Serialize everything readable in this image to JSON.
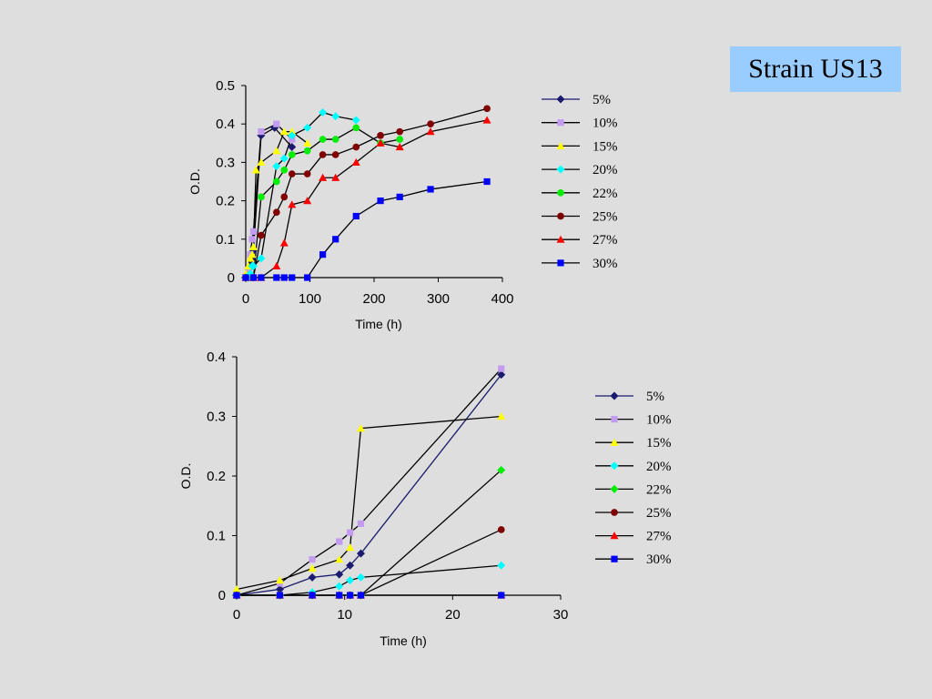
{
  "slide": {
    "title": "Strain US13"
  },
  "colors": {
    "5%": "#1a1a6e",
    "10%": "#c39bef",
    "15%": "#ffff00",
    "20%": "#00ffff",
    "22%": "#00ee00",
    "25%": "#800000",
    "27%": "#ff0000",
    "30%": "#0000ff"
  },
  "chart_data": [
    {
      "type": "line",
      "xlabel": "Time (h)",
      "ylabel": "O.D.",
      "xlim": [
        0,
        400
      ],
      "ylim": [
        0,
        0.5
      ],
      "xticks": [
        0,
        100,
        200,
        300,
        400
      ],
      "yticks": [
        0,
        0.1,
        0.2,
        0.3,
        0.4,
        0.5
      ],
      "xtick_labels": [
        "0",
        "100",
        "200",
        "300",
        "400"
      ],
      "ytick_labels": [
        "0",
        "0.1",
        "0.2",
        "0.3",
        "0.4",
        "0.5"
      ],
      "legend": "right",
      "series": [
        {
          "name": "5%",
          "marker": "diamond",
          "points": [
            [
              0,
              0
            ],
            [
              4,
              0.01
            ],
            [
              7,
              0.03
            ],
            [
              10,
              0.05
            ],
            [
              12,
              0.07
            ],
            [
              24,
              0.37
            ],
            [
              45,
              0.39
            ],
            [
              72,
              0.34
            ]
          ]
        },
        {
          "name": "10%",
          "marker": "square",
          "points": [
            [
              0,
              0
            ],
            [
              4,
              0.02
            ],
            [
              7,
              0.06
            ],
            [
              10,
              0.1
            ],
            [
              12,
              0.12
            ],
            [
              24,
              0.38
            ],
            [
              48,
              0.4
            ],
            [
              72,
              0.36
            ]
          ]
        },
        {
          "name": "15%",
          "marker": "triangle",
          "points": [
            [
              0,
              0.01
            ],
            [
              4,
              0.03
            ],
            [
              7,
              0.05
            ],
            [
              10,
              0.06
            ],
            [
              12,
              0.08
            ],
            [
              16,
              0.28
            ],
            [
              24,
              0.3
            ],
            [
              48,
              0.33
            ],
            [
              60,
              0.38
            ],
            [
              72,
              0.38
            ],
            [
              96,
              0.35
            ]
          ]
        },
        {
          "name": "20%",
          "marker": "diamond",
          "points": [
            [
              0,
              0
            ],
            [
              4,
              0
            ],
            [
              7,
              0.01
            ],
            [
              10,
              0.03
            ],
            [
              12,
              0.03
            ],
            [
              24,
              0.05
            ],
            [
              48,
              0.29
            ],
            [
              60,
              0.31
            ],
            [
              72,
              0.37
            ],
            [
              96,
              0.39
            ],
            [
              120,
              0.43
            ],
            [
              140,
              0.42
            ],
            [
              172,
              0.41
            ]
          ]
        },
        {
          "name": "22%",
          "marker": "circle",
          "points": [
            [
              0,
              0
            ],
            [
              12,
              0
            ],
            [
              24,
              0.21
            ],
            [
              48,
              0.25
            ],
            [
              60,
              0.28
            ],
            [
              72,
              0.32
            ],
            [
              96,
              0.33
            ],
            [
              120,
              0.36
            ],
            [
              140,
              0.36
            ],
            [
              172,
              0.39
            ],
            [
              210,
              0.35
            ],
            [
              240,
              0.36
            ]
          ]
        },
        {
          "name": "25%",
          "marker": "circle",
          "points": [
            [
              0,
              0
            ],
            [
              12,
              0
            ],
            [
              24,
              0.11
            ],
            [
              48,
              0.17
            ],
            [
              60,
              0.21
            ],
            [
              72,
              0.27
            ],
            [
              96,
              0.27
            ],
            [
              120,
              0.32
            ],
            [
              140,
              0.32
            ],
            [
              172,
              0.34
            ],
            [
              210,
              0.37
            ],
            [
              240,
              0.38
            ],
            [
              288,
              0.4
            ],
            [
              376,
              0.44
            ]
          ]
        },
        {
          "name": "27%",
          "marker": "triangle",
          "points": [
            [
              0,
              0
            ],
            [
              12,
              0
            ],
            [
              24,
              0
            ],
            [
              48,
              0.03
            ],
            [
              60,
              0.09
            ],
            [
              72,
              0.19
            ],
            [
              96,
              0.2
            ],
            [
              120,
              0.26
            ],
            [
              140,
              0.26
            ],
            [
              172,
              0.3
            ],
            [
              210,
              0.35
            ],
            [
              240,
              0.34
            ],
            [
              288,
              0.38
            ],
            [
              376,
              0.41
            ]
          ]
        },
        {
          "name": "30%",
          "marker": "square",
          "points": [
            [
              0,
              0
            ],
            [
              12,
              0
            ],
            [
              24,
              0
            ],
            [
              48,
              0
            ],
            [
              60,
              0
            ],
            [
              72,
              0
            ],
            [
              96,
              0
            ],
            [
              120,
              0.06
            ],
            [
              140,
              0.1
            ],
            [
              172,
              0.16
            ],
            [
              210,
              0.2
            ],
            [
              240,
              0.21
            ],
            [
              288,
              0.23
            ],
            [
              376,
              0.25
            ]
          ]
        }
      ]
    },
    {
      "type": "line",
      "xlabel": "Time (h)",
      "ylabel": "O.D.",
      "xlim": [
        0,
        30
      ],
      "ylim": [
        0,
        0.4
      ],
      "xticks": [
        0,
        10,
        20,
        30
      ],
      "yticks": [
        0,
        0.1,
        0.2,
        0.3,
        0.4
      ],
      "xtick_labels": [
        "0",
        "10",
        "20",
        "30"
      ],
      "ytick_labels": [
        "0",
        "0.1",
        "0.2",
        "0.3",
        "0.4"
      ],
      "legend": "right",
      "series": [
        {
          "name": "5%",
          "marker": "diamond",
          "points": [
            [
              0,
              0
            ],
            [
              4,
              0.01
            ],
            [
              7,
              0.03
            ],
            [
              9.5,
              0.035
            ],
            [
              10.5,
              0.05
            ],
            [
              11.5,
              0.07
            ],
            [
              24.5,
              0.37
            ]
          ]
        },
        {
          "name": "10%",
          "marker": "square",
          "points": [
            [
              0,
              0
            ],
            [
              4,
              0.02
            ],
            [
              7,
              0.06
            ],
            [
              9.5,
              0.09
            ],
            [
              10.5,
              0.105
            ],
            [
              11.5,
              0.12
            ],
            [
              24.5,
              0.38
            ]
          ]
        },
        {
          "name": "15%",
          "marker": "triangle",
          "points": [
            [
              0,
              0.01
            ],
            [
              4,
              0.025
            ],
            [
              7,
              0.045
            ],
            [
              9.5,
              0.06
            ],
            [
              10.5,
              0.08
            ],
            [
              11.5,
              0.28
            ],
            [
              24.5,
              0.3
            ]
          ]
        },
        {
          "name": "20%",
          "marker": "diamond",
          "points": [
            [
              0,
              0
            ],
            [
              4,
              0
            ],
            [
              7,
              0.005
            ],
            [
              9.5,
              0.015
            ],
            [
              10.5,
              0.025
            ],
            [
              11.5,
              0.03
            ],
            [
              24.5,
              0.05
            ]
          ]
        },
        {
          "name": "22%",
          "marker": "diamond",
          "points": [
            [
              0,
              0
            ],
            [
              4,
              0
            ],
            [
              7,
              0
            ],
            [
              9.5,
              0
            ],
            [
              10.5,
              0
            ],
            [
              11.5,
              0
            ],
            [
              24.5,
              0.21
            ]
          ]
        },
        {
          "name": "25%",
          "marker": "circle",
          "points": [
            [
              0,
              0
            ],
            [
              4,
              0
            ],
            [
              7,
              0
            ],
            [
              9.5,
              0
            ],
            [
              10.5,
              0
            ],
            [
              11.5,
              0
            ],
            [
              24.5,
              0.11
            ]
          ]
        },
        {
          "name": "27%",
          "marker": "triangle",
          "points": [
            [
              0,
              0
            ],
            [
              4,
              0
            ],
            [
              7,
              0
            ],
            [
              9.5,
              0
            ],
            [
              10.5,
              0
            ],
            [
              11.5,
              0
            ],
            [
              24.5,
              0
            ]
          ]
        },
        {
          "name": "30%",
          "marker": "square",
          "points": [
            [
              0,
              0
            ],
            [
              4,
              0
            ],
            [
              7,
              0
            ],
            [
              9.5,
              0
            ],
            [
              10.5,
              0
            ],
            [
              11.5,
              0
            ],
            [
              24.5,
              0
            ]
          ]
        }
      ]
    }
  ]
}
